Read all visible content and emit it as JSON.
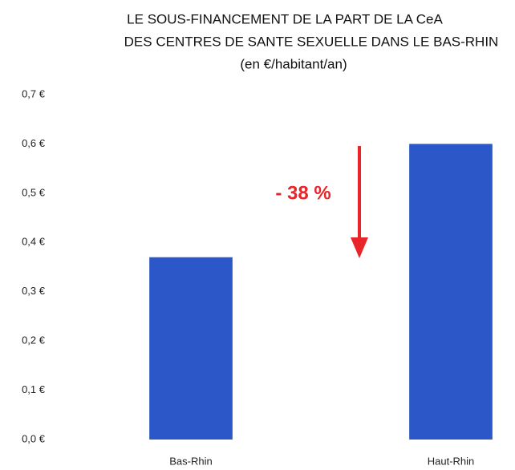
{
  "chart_data": {
    "type": "bar",
    "title": [
      "LE SOUS-FINANCEMENT DE LA PART DE LA CeA",
      "DES CENTRES DE SANTE SEXUELLE DANS LE BAS-RHIN",
      "(en €/habitant/an)"
    ],
    "categories": [
      "Bas-Rhin",
      "Haut-Rhin"
    ],
    "values": [
      0.37,
      0.6
    ],
    "color": "#2b57c8",
    "ylim": [
      0,
      0.7
    ],
    "yticks": [
      {
        "value": 0,
        "label": "0,0 €"
      },
      {
        "value": 0.1,
        "label": "0,1 €"
      },
      {
        "value": 0.2,
        "label": "0,2 €"
      },
      {
        "value": 0.3,
        "label": "0,3 €"
      },
      {
        "value": 0.4,
        "label": "0,4 €"
      },
      {
        "value": 0.5,
        "label": "0,5 €"
      },
      {
        "value": 0.6,
        "label": "0,6 €"
      },
      {
        "value": 0.7,
        "label": "0,7 €"
      }
    ],
    "grid": false,
    "annotation": "- 38 %",
    "annotation_color": "#e8262a"
  }
}
